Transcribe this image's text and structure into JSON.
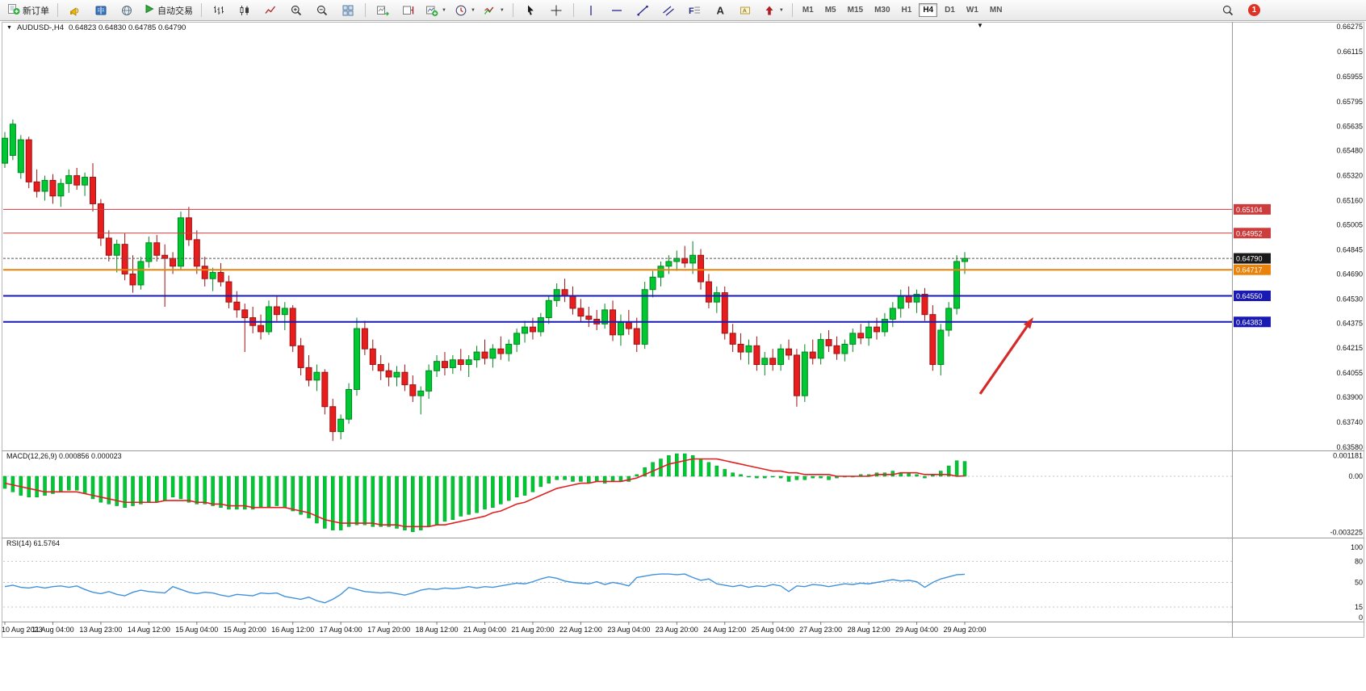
{
  "toolbar": {
    "new_order": "新订单",
    "auto_trading": "自动交易",
    "timeframes": [
      "M1",
      "M5",
      "M15",
      "M30",
      "H1",
      "H4",
      "D1",
      "W1",
      "MN"
    ],
    "active_timeframe": "H4",
    "notification_count": "1"
  },
  "icons": {
    "new_order": "document-plus-icon",
    "announcement": "megaphone-icon",
    "market_book": "book-icon",
    "globe": "globe-icon",
    "auto_trading": "play-icon",
    "bar_chart": "ohlc-bars-icon",
    "candle_chart": "candlestick-icon",
    "line_chart": "polyline-icon",
    "zoom_in": "magnifier-plus-icon",
    "zoom_out": "magnifier-minus-icon",
    "tile_windows": "grid-icon",
    "auto_scroll": "chart-arrow-icon",
    "chart_shift": "chart-margin-icon",
    "new_chart": "chart-plus-icon",
    "periods": "clock-icon",
    "indicators": "indicator-lines-icon",
    "cursor": "pointer-icon",
    "crosshair": "crosshair-icon",
    "vline": "vertical-line-icon",
    "hline": "horizontal-line-icon",
    "trendline": "diagonal-line-icon",
    "channel": "parallel-lines-icon",
    "fibonacci": "fibo-icon",
    "text": "letter-a-icon",
    "label": "tag-icon",
    "arrows": "arrow-up-icon",
    "search": "magnifier-icon",
    "dropdown": "chevron-down-icon"
  },
  "chart": {
    "symbol_title": "AUDUSD-,H4",
    "ohlc_text": "0.64823 0.64830 0.64785 0.64790"
  },
  "indicators": {
    "macd_label": "MACD(12,26,9) 0.000856 0.000023",
    "rsi_label": "RSI(14) 61.5764"
  },
  "chart_data": {
    "type": "candlestick",
    "symbol": "AUDUSD",
    "timeframe": "H4",
    "price_axis_range": [
      0.6358,
      0.66275
    ],
    "price_axis_labels": [
      "0.66275",
      "0.66115",
      "0.65955",
      "0.65795",
      "0.65635",
      "0.65480",
      "0.65320",
      "0.65160",
      "0.65005",
      "0.64845",
      "0.64690",
      "0.64530",
      "0.64375",
      "0.64215",
      "0.64055",
      "0.63900",
      "0.63740",
      "0.63580"
    ],
    "time_axis_labels": [
      "10 Aug 2023",
      "11 Aug 04:00",
      "13 Aug 23:00",
      "14 Aug 12:00",
      "15 Aug 04:00",
      "15 Aug 20:00",
      "16 Aug 12:00",
      "17 Aug 04:00",
      "17 Aug 20:00",
      "18 Aug 12:00",
      "21 Aug 04:00",
      "21 Aug 20:00",
      "22 Aug 12:00",
      "23 Aug 04:00",
      "23 Aug 20:00",
      "24 Aug 12:00",
      "25 Aug 04:00",
      "27 Aug 23:00",
      "28 Aug 12:00",
      "29 Aug 04:00",
      "29 Aug 20:00"
    ],
    "candle_up_color": "#00c832",
    "candle_down_color": "#e81e1e",
    "candles": [
      [
        0.654,
        0.656,
        0.6537,
        0.6556
      ],
      [
        0.6545,
        0.6568,
        0.6542,
        0.6565
      ],
      [
        0.6534,
        0.6558,
        0.653,
        0.6555
      ],
      [
        0.6555,
        0.6557,
        0.6524,
        0.6528
      ],
      [
        0.6528,
        0.6536,
        0.6518,
        0.6522
      ],
      [
        0.6522,
        0.6532,
        0.6516,
        0.6529
      ],
      [
        0.6529,
        0.6533,
        0.6514,
        0.6519
      ],
      [
        0.6519,
        0.653,
        0.6512,
        0.6527
      ],
      [
        0.6527,
        0.6536,
        0.6521,
        0.6532
      ],
      [
        0.6532,
        0.6537,
        0.6523,
        0.6526
      ],
      [
        0.6526,
        0.6534,
        0.6519,
        0.6531
      ],
      [
        0.6531,
        0.654,
        0.6509,
        0.6514
      ],
      [
        0.6514,
        0.6517,
        0.6487,
        0.6492
      ],
      [
        0.6492,
        0.6497,
        0.6477,
        0.6481
      ],
      [
        0.6481,
        0.6491,
        0.647,
        0.6488
      ],
      [
        0.6488,
        0.6495,
        0.6465,
        0.6469
      ],
      [
        0.6469,
        0.6481,
        0.6457,
        0.6462
      ],
      [
        0.6462,
        0.648,
        0.6459,
        0.6477
      ],
      [
        0.6477,
        0.6493,
        0.6473,
        0.6489
      ],
      [
        0.6489,
        0.6494,
        0.6477,
        0.6481
      ],
      [
        0.6481,
        0.6488,
        0.6448,
        0.6479
      ],
      [
        0.6479,
        0.6483,
        0.6469,
        0.6474
      ],
      [
        0.6474,
        0.6509,
        0.6472,
        0.6505
      ],
      [
        0.6505,
        0.6512,
        0.6487,
        0.6491
      ],
      [
        0.6491,
        0.6497,
        0.6469,
        0.6474
      ],
      [
        0.6474,
        0.648,
        0.6461,
        0.6466
      ],
      [
        0.6466,
        0.6473,
        0.6458,
        0.647
      ],
      [
        0.647,
        0.6476,
        0.6461,
        0.6464
      ],
      [
        0.6464,
        0.6468,
        0.6447,
        0.6451
      ],
      [
        0.6451,
        0.6458,
        0.6441,
        0.6446
      ],
      [
        0.6446,
        0.645,
        0.6419,
        0.6441
      ],
      [
        0.6441,
        0.6448,
        0.6431,
        0.6436
      ],
      [
        0.6436,
        0.6443,
        0.6427,
        0.6432
      ],
      [
        0.6432,
        0.6452,
        0.643,
        0.6448
      ],
      [
        0.6448,
        0.6455,
        0.6439,
        0.6443
      ],
      [
        0.6443,
        0.6451,
        0.6433,
        0.6447
      ],
      [
        0.6447,
        0.6449,
        0.6419,
        0.6423
      ],
      [
        0.6423,
        0.6428,
        0.6404,
        0.6409
      ],
      [
        0.6409,
        0.6417,
        0.6397,
        0.6401
      ],
      [
        0.6401,
        0.6411,
        0.6394,
        0.6406
      ],
      [
        0.6406,
        0.6408,
        0.6379,
        0.6384
      ],
      [
        0.6384,
        0.6389,
        0.6362,
        0.6368
      ],
      [
        0.6368,
        0.6379,
        0.6363,
        0.6376
      ],
      [
        0.6376,
        0.6399,
        0.6373,
        0.6395
      ],
      [
        0.6395,
        0.6441,
        0.6391,
        0.6434
      ],
      [
        0.6434,
        0.6439,
        0.6417,
        0.6421
      ],
      [
        0.6421,
        0.6427,
        0.6407,
        0.6411
      ],
      [
        0.6411,
        0.6417,
        0.6401,
        0.6407
      ],
      [
        0.6407,
        0.6412,
        0.6397,
        0.6403
      ],
      [
        0.6403,
        0.641,
        0.6397,
        0.6406
      ],
      [
        0.6406,
        0.6411,
        0.6394,
        0.6398
      ],
      [
        0.6398,
        0.6404,
        0.6387,
        0.6391
      ],
      [
        0.6391,
        0.6397,
        0.6379,
        0.6394
      ],
      [
        0.6394,
        0.6411,
        0.6389,
        0.6407
      ],
      [
        0.6407,
        0.6417,
        0.6403,
        0.6413
      ],
      [
        0.6413,
        0.6419,
        0.6404,
        0.6409
      ],
      [
        0.6409,
        0.6417,
        0.6405,
        0.6414
      ],
      [
        0.6414,
        0.6421,
        0.6407,
        0.6411
      ],
      [
        0.6411,
        0.6417,
        0.6403,
        0.6414
      ],
      [
        0.6414,
        0.6423,
        0.6409,
        0.6419
      ],
      [
        0.6419,
        0.6427,
        0.6411,
        0.6415
      ],
      [
        0.6415,
        0.6424,
        0.6409,
        0.6421
      ],
      [
        0.6421,
        0.6429,
        0.6414,
        0.6418
      ],
      [
        0.6418,
        0.6427,
        0.6413,
        0.6424
      ],
      [
        0.6424,
        0.6434,
        0.6419,
        0.6431
      ],
      [
        0.6431,
        0.6439,
        0.6425,
        0.6435
      ],
      [
        0.6435,
        0.6441,
        0.6427,
        0.6432
      ],
      [
        0.6432,
        0.6444,
        0.6429,
        0.6441
      ],
      [
        0.6441,
        0.6455,
        0.6437,
        0.6452
      ],
      [
        0.6452,
        0.6463,
        0.6448,
        0.6459
      ],
      [
        0.6459,
        0.6466,
        0.6451,
        0.6455
      ],
      [
        0.6455,
        0.6461,
        0.6443,
        0.6447
      ],
      [
        0.6447,
        0.6453,
        0.6438,
        0.6442
      ],
      [
        0.6442,
        0.6448,
        0.6435,
        0.644
      ],
      [
        0.644,
        0.6446,
        0.6433,
        0.6437
      ],
      [
        0.6437,
        0.645,
        0.6434,
        0.6446
      ],
      [
        0.6446,
        0.6452,
        0.6426,
        0.643
      ],
      [
        0.643,
        0.6443,
        0.6423,
        0.6438
      ],
      [
        0.6438,
        0.6446,
        0.643,
        0.6434
      ],
      [
        0.6434,
        0.6441,
        0.6419,
        0.6424
      ],
      [
        0.6424,
        0.6464,
        0.6421,
        0.6459
      ],
      [
        0.6459,
        0.6471,
        0.6454,
        0.6467
      ],
      [
        0.6467,
        0.6477,
        0.6461,
        0.6474
      ],
      [
        0.6474,
        0.6481,
        0.6469,
        0.6477
      ],
      [
        0.6477,
        0.6484,
        0.6471,
        0.6479
      ],
      [
        0.6479,
        0.6487,
        0.6473,
        0.6476
      ],
      [
        0.6476,
        0.649,
        0.6469,
        0.6481
      ],
      [
        0.6481,
        0.6485,
        0.6459,
        0.6464
      ],
      [
        0.6464,
        0.6469,
        0.6447,
        0.6451
      ],
      [
        0.6451,
        0.6461,
        0.6444,
        0.6457
      ],
      [
        0.6457,
        0.6461,
        0.6427,
        0.6431
      ],
      [
        0.6431,
        0.6437,
        0.6419,
        0.6424
      ],
      [
        0.6424,
        0.6431,
        0.6414,
        0.6419
      ],
      [
        0.6419,
        0.6427,
        0.6411,
        0.6423
      ],
      [
        0.6423,
        0.6429,
        0.6407,
        0.6411
      ],
      [
        0.6411,
        0.6419,
        0.6404,
        0.6415
      ],
      [
        0.6415,
        0.6421,
        0.6407,
        0.6411
      ],
      [
        0.6411,
        0.6424,
        0.6407,
        0.6421
      ],
      [
        0.6421,
        0.6427,
        0.6414,
        0.6417
      ],
      [
        0.6417,
        0.6421,
        0.6384,
        0.6391
      ],
      [
        0.6391,
        0.6424,
        0.6387,
        0.6419
      ],
      [
        0.6419,
        0.6427,
        0.6411,
        0.6415
      ],
      [
        0.6415,
        0.6431,
        0.6411,
        0.6427
      ],
      [
        0.6427,
        0.6433,
        0.6419,
        0.6423
      ],
      [
        0.6423,
        0.6429,
        0.6414,
        0.6418
      ],
      [
        0.6418,
        0.6427,
        0.6413,
        0.6424
      ],
      [
        0.6424,
        0.6434,
        0.6419,
        0.6431
      ],
      [
        0.6431,
        0.6437,
        0.6424,
        0.6428
      ],
      [
        0.6428,
        0.6439,
        0.6423,
        0.6435
      ],
      [
        0.6435,
        0.6441,
        0.6427,
        0.6432
      ],
      [
        0.6432,
        0.6444,
        0.6429,
        0.644
      ],
      [
        0.644,
        0.6451,
        0.6435,
        0.6447
      ],
      [
        0.6447,
        0.6459,
        0.6441,
        0.6455
      ],
      [
        0.6455,
        0.6461,
        0.6447,
        0.6451
      ],
      [
        0.6451,
        0.6459,
        0.6444,
        0.6456
      ],
      [
        0.6456,
        0.646,
        0.6439,
        0.6443
      ],
      [
        0.6443,
        0.6449,
        0.6407,
        0.6411
      ],
      [
        0.6411,
        0.6437,
        0.6404,
        0.6433
      ],
      [
        0.6433,
        0.6451,
        0.6429,
        0.6447
      ],
      [
        0.6447,
        0.6481,
        0.6443,
        0.6477
      ],
      [
        0.6477,
        0.6483,
        0.6469,
        0.6479
      ]
    ],
    "hlines": [
      {
        "price": 0.65104,
        "label": "0.65104",
        "color": "#cd3c3c",
        "width": 1
      },
      {
        "price": 0.64952,
        "label": "0.64952",
        "color": "#cd3c3c",
        "width": 1
      },
      {
        "price": 0.64717,
        "label": "0.64717",
        "color": "#e8820a",
        "width": 2
      },
      {
        "price": 0.6455,
        "label": "0.64550",
        "color": "#1919b4",
        "width": 2
      },
      {
        "price": 0.64383,
        "label": "0.64383",
        "color": "#1919b4",
        "width": 2
      }
    ],
    "current_price": {
      "price": 0.6479,
      "label": "0.64790",
      "tag_color": "#1a1a1a"
    },
    "annotation_arrow": {
      "color": "#d42a2a",
      "from": [
        1214,
        488
      ],
      "to": [
        1280,
        393
      ]
    },
    "macd": {
      "params": "12,26,9",
      "value": 0.000856,
      "signal_value": 2.3e-05,
      "axis_labels": [
        "0.001181",
        "0.00",
        "-0.003225"
      ],
      "axis_values": [
        0.001181,
        0,
        -0.003225
      ],
      "histogram_color": "#00c832",
      "signal_color": "#e02020",
      "histogram": [
        -0.0007,
        -0.0009,
        -0.0011,
        -0.0012,
        -0.0012,
        -0.0011,
        -0.001,
        -0.0009,
        -0.0008,
        -0.0008,
        -0.001,
        -0.0013,
        -0.0015,
        -0.0016,
        -0.0017,
        -0.0018,
        -0.0017,
        -0.0016,
        -0.0015,
        -0.0015,
        -0.0014,
        -0.0012,
        -0.0013,
        -0.0015,
        -0.0016,
        -0.0016,
        -0.0017,
        -0.0018,
        -0.0019,
        -0.0019,
        -0.0019,
        -0.0019,
        -0.0018,
        -0.0018,
        -0.0017,
        -0.0018,
        -0.002,
        -0.0022,
        -0.0024,
        -0.0027,
        -0.003,
        -0.0031,
        -0.0031,
        -0.0029,
        -0.0028,
        -0.0028,
        -0.0029,
        -0.0029,
        -0.0029,
        -0.003,
        -0.0031,
        -0.0032,
        -0.0031,
        -0.0029,
        -0.0028,
        -0.0026,
        -0.0025,
        -0.0023,
        -0.0022,
        -0.0021,
        -0.0019,
        -0.0018,
        -0.0016,
        -0.0014,
        -0.0012,
        -0.0011,
        -0.0009,
        -0.0006,
        -0.0004,
        -0.0002,
        -0.0002,
        -0.0003,
        -0.0003,
        -0.0004,
        -0.0003,
        -0.0004,
        -0.0003,
        -0.0003,
        -0.0003,
        0.0001,
        0.0005,
        0.0008,
        0.001,
        0.0012,
        0.0013,
        0.0013,
        0.0012,
        0.001,
        0.0008,
        0.0006,
        0.0004,
        0.0002,
        0.0001,
        0.0,
        -0.0001,
        -0.0001,
        0.0,
        -0.0001,
        -0.0003,
        -0.0002,
        -0.0002,
        -0.0001,
        -0.0001,
        -0.0002,
        -0.0001,
        0.0,
        0.0,
        0.0001,
        0.0001,
        0.0002,
        0.0002,
        0.0003,
        0.0002,
        0.0002,
        0.0001,
        -0.0001,
        0.0001,
        0.0003,
        0.0006,
        0.0009,
        0.000856
      ],
      "signal": [
        -0.0004,
        -0.0005,
        -0.0006,
        -0.0007,
        -0.0008,
        -0.0009,
        -0.0009,
        -0.0009,
        -0.0009,
        -0.0009,
        -0.001,
        -0.0011,
        -0.0012,
        -0.0013,
        -0.0014,
        -0.0015,
        -0.0015,
        -0.0015,
        -0.0015,
        -0.0015,
        -0.0014,
        -0.0014,
        -0.0014,
        -0.0014,
        -0.0015,
        -0.0015,
        -0.0016,
        -0.0016,
        -0.0017,
        -0.0017,
        -0.0017,
        -0.0018,
        -0.0018,
        -0.0018,
        -0.0018,
        -0.0018,
        -0.0019,
        -0.002,
        -0.0021,
        -0.0023,
        -0.0025,
        -0.0026,
        -0.0027,
        -0.0027,
        -0.0027,
        -0.0027,
        -0.0027,
        -0.0028,
        -0.0028,
        -0.0028,
        -0.0029,
        -0.0029,
        -0.0029,
        -0.0029,
        -0.0028,
        -0.0028,
        -0.0027,
        -0.0026,
        -0.0025,
        -0.0024,
        -0.0023,
        -0.0021,
        -0.002,
        -0.0018,
        -0.0016,
        -0.0015,
        -0.0013,
        -0.0011,
        -0.0009,
        -0.0007,
        -0.0006,
        -0.0005,
        -0.0004,
        -0.0004,
        -0.0003,
        -0.0003,
        -0.0003,
        -0.0003,
        -0.0002,
        -0.0001,
        0.0001,
        0.0003,
        0.0005,
        0.0007,
        0.0008,
        0.0009,
        0.001,
        0.001,
        0.001,
        0.001,
        0.0009,
        0.0008,
        0.0007,
        0.0006,
        0.0005,
        0.0004,
        0.0003,
        0.0003,
        0.0002,
        0.0002,
        0.0001,
        0.0001,
        0.0001,
        0.0001,
        0.0,
        0.0,
        0.0,
        0.0,
        0.0,
        0.0001,
        0.0001,
        0.0001,
        0.0002,
        0.0002,
        0.0002,
        0.0001,
        0.0001,
        0.0001,
        0.0001,
        0.0,
        2.3e-05
      ]
    },
    "rsi": {
      "period": 14,
      "last": 61.5764,
      "levels": [
        15,
        50,
        80
      ],
      "axis_labels": [
        "100",
        "80",
        "50",
        "15",
        "0"
      ],
      "axis_values": [
        100,
        80,
        50,
        15,
        0
      ],
      "line_color": "#4092dc",
      "values": [
        44,
        46,
        43,
        42,
        44,
        42,
        44,
        45,
        43,
        45,
        40,
        36,
        34,
        37,
        33,
        31,
        36,
        39,
        37,
        36,
        35,
        44,
        40,
        36,
        34,
        36,
        35,
        32,
        30,
        33,
        32,
        31,
        35,
        34,
        35,
        30,
        28,
        26,
        29,
        24,
        21,
        26,
        33,
        43,
        40,
        37,
        36,
        35,
        36,
        34,
        32,
        35,
        39,
        41,
        40,
        42,
        41,
        42,
        44,
        42,
        44,
        43,
        45,
        47,
        49,
        48,
        51,
        55,
        58,
        56,
        52,
        50,
        49,
        48,
        51,
        47,
        50,
        48,
        45,
        57,
        59,
        61,
        62,
        62,
        61,
        62,
        57,
        53,
        55,
        48,
        46,
        44,
        46,
        43,
        45,
        44,
        47,
        45,
        37,
        45,
        44,
        47,
        46,
        44,
        46,
        48,
        47,
        49,
        48,
        50,
        52,
        54,
        52,
        53,
        51,
        43,
        50,
        55,
        58,
        61,
        61.5764
      ]
    }
  }
}
